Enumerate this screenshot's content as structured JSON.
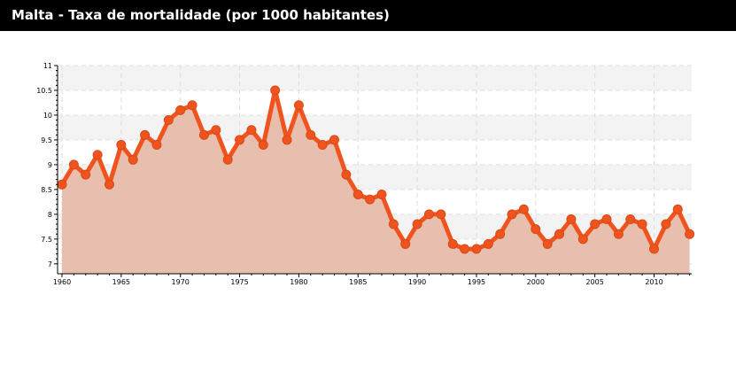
{
  "header": {
    "title": "Malta - Taxa de mortalidade (por 1000 habitantes)"
  },
  "colors": {
    "title_bg": "#000000",
    "title_text": "#ffffff",
    "line": "#f0541e",
    "area_fill": "#e8bfae",
    "band": "#f3f3f3"
  },
  "chart_data": {
    "type": "area",
    "title": "Malta - Taxa de mortalidade (por 1000 habitantes)",
    "xlabel": "",
    "ylabel": "",
    "xlim": [
      1960,
      2013
    ],
    "ylim": [
      6.8,
      11
    ],
    "grid": true,
    "x_ticks": [
      1960,
      1965,
      1970,
      1975,
      1980,
      1985,
      1990,
      1995,
      2000,
      2005,
      2010
    ],
    "y_ticks": [
      7,
      7.5,
      8,
      8.5,
      9,
      9.5,
      10,
      10.5,
      11
    ],
    "x_tick_labels": [
      "1960",
      "1965",
      "1970",
      "1975",
      "1980",
      "1985",
      "1990",
      "1995",
      "2000",
      "2005",
      "2010"
    ],
    "y_tick_labels": [
      "7",
      "7.5",
      "8",
      "8.5",
      "9",
      "9.5",
      "10",
      "10.5",
      "11"
    ],
    "x": [
      1960,
      1961,
      1962,
      1963,
      1964,
      1965,
      1966,
      1967,
      1968,
      1969,
      1970,
      1971,
      1972,
      1973,
      1974,
      1975,
      1976,
      1977,
      1978,
      1979,
      1980,
      1981,
      1982,
      1983,
      1984,
      1985,
      1986,
      1987,
      1988,
      1989,
      1990,
      1991,
      1992,
      1993,
      1994,
      1995,
      1996,
      1997,
      1998,
      1999,
      2000,
      2001,
      2002,
      2003,
      2004,
      2005,
      2006,
      2007,
      2008,
      2009,
      2010,
      2011,
      2012,
      2013
    ],
    "series": [
      {
        "values": [
          8.6,
          9.0,
          8.8,
          9.2,
          8.6,
          9.4,
          9.1,
          9.6,
          9.4,
          9.9,
          10.1,
          10.2,
          9.6,
          9.7,
          9.1,
          9.5,
          9.7,
          9.4,
          10.5,
          9.5,
          10.2,
          9.6,
          9.4,
          9.5,
          8.8,
          8.4,
          8.3,
          8.4,
          7.8,
          7.4,
          7.8,
          8.0,
          8.0,
          7.4,
          7.3,
          7.3,
          7.4,
          7.6,
          8.0,
          8.1,
          7.7,
          7.4,
          7.6,
          7.9,
          7.5,
          7.8,
          7.9,
          7.6,
          7.9,
          7.8,
          7.3,
          7.8,
          8.1,
          7.6
        ]
      }
    ]
  }
}
